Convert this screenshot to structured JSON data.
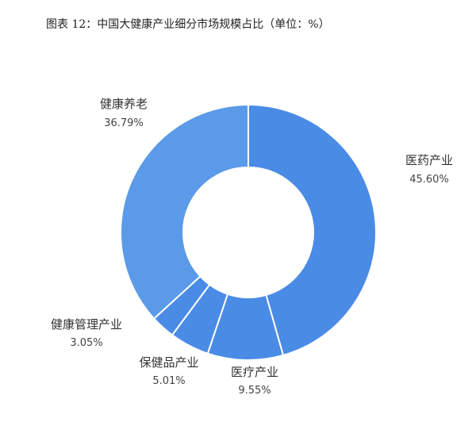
{
  "chart_data": {
    "type": "pie",
    "title": "图表 12：中国大健康产业细分市场规模占比（单位：%）",
    "slices": [
      {
        "name": "医药产业",
        "value": 45.6,
        "label": "45.60%",
        "color": "#4a8be6"
      },
      {
        "name": "医疗产业",
        "value": 9.55,
        "label": "9.55%",
        "color": "#4a8be6"
      },
      {
        "name": "保健品产业",
        "value": 5.01,
        "label": "5.01%",
        "color": "#4a8be6"
      },
      {
        "name": "健康管理产业",
        "value": 3.05,
        "label": "3.05%",
        "color": "#4a8be6"
      },
      {
        "name": "健康养老",
        "value": 36.79,
        "label": "36.79%",
        "color": "#5b9ae8"
      }
    ],
    "start_angle_deg": 0,
    "direction": "clockwise",
    "donut": true,
    "legend": "none"
  }
}
